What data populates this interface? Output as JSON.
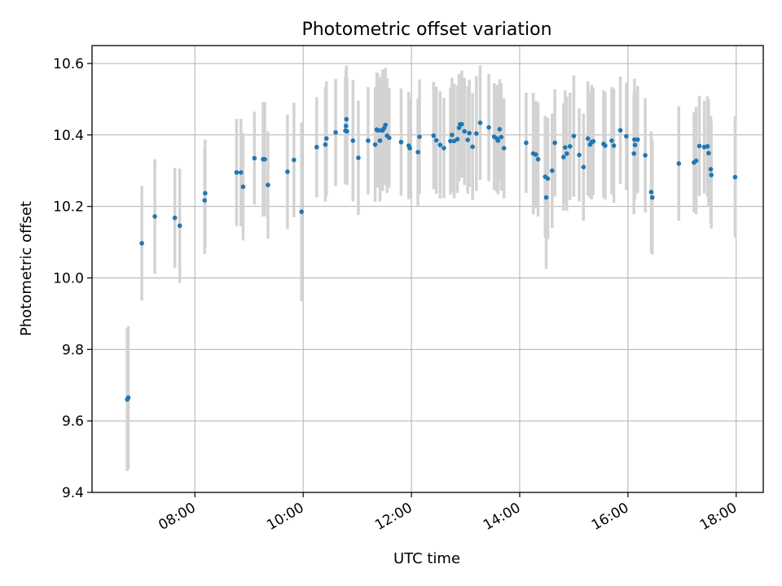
{
  "chart_data": {
    "type": "scatter",
    "title": "Photometric offset variation",
    "xlabel": "UTC time",
    "ylabel": "Photometric offset",
    "xlim": [
      6.1,
      18.5
    ],
    "ylim": [
      9.4,
      10.65
    ],
    "grid": true,
    "colors": {
      "points": "#1f77b4",
      "errorbars": "#d3d3d3",
      "grid": "#b0b0b0",
      "axes": "#000000"
    },
    "x_ticks": [
      8,
      10,
      12,
      14,
      16,
      18
    ],
    "x_tick_labels": [
      "08:00",
      "10:00",
      "12:00",
      "14:00",
      "16:00",
      "18:00"
    ],
    "y_ticks": [
      9.4,
      9.6,
      9.8,
      10.0,
      10.2,
      10.4,
      10.6
    ],
    "y_tick_labels": [
      "9.4",
      "9.6",
      "9.8",
      "10.0",
      "10.2",
      "10.4",
      "10.6"
    ],
    "series": [
      {
        "x": [
          6.75,
          6.77,
          7.02,
          7.26,
          7.63,
          7.72,
          8.18,
          8.19,
          8.77,
          8.85,
          8.89,
          9.1,
          9.26,
          9.29,
          9.35,
          9.71,
          9.83,
          9.97,
          10.25,
          10.41,
          10.43,
          10.6,
          10.78,
          10.79,
          10.8,
          10.81,
          10.92,
          11.02,
          11.2,
          11.33,
          11.36,
          11.38,
          11.42,
          11.44,
          11.47,
          11.5,
          11.52,
          11.55,
          11.59,
          11.81,
          11.95,
          11.97,
          12.12,
          12.15,
          12.41,
          12.46,
          12.53,
          12.6,
          12.72,
          12.75,
          12.79,
          12.85,
          12.88,
          12.9,
          12.93,
          12.98,
          13.04,
          13.07,
          13.13,
          13.2,
          13.27,
          13.43,
          13.53,
          13.58,
          13.6,
          13.63,
          13.66,
          13.71,
          14.12,
          14.25,
          14.3,
          14.34,
          14.47,
          14.49,
          14.52,
          14.6,
          14.65,
          14.81,
          14.84,
          14.87,
          14.93,
          15.0,
          15.1,
          15.18,
          15.26,
          15.3,
          15.33,
          15.36,
          15.55,
          15.58,
          15.7,
          15.74,
          15.86,
          15.97,
          16.11,
          16.12,
          16.13,
          16.18,
          16.32,
          16.43,
          16.45,
          16.94,
          17.22,
          17.26,
          17.32,
          17.41,
          17.47,
          17.49,
          17.53,
          17.54,
          17.98
        ],
        "y": [
          9.66,
          9.665,
          10.097,
          10.172,
          10.168,
          10.146,
          10.217,
          10.237,
          10.295,
          10.295,
          10.255,
          10.335,
          10.332,
          10.332,
          10.26,
          10.297,
          10.33,
          10.185,
          10.366,
          10.373,
          10.39,
          10.407,
          10.412,
          10.425,
          10.444,
          10.41,
          10.384,
          10.336,
          10.384,
          10.373,
          10.415,
          10.413,
          10.384,
          10.413,
          10.413,
          10.42,
          10.428,
          10.398,
          10.392,
          10.38,
          10.37,
          10.363,
          10.352,
          10.395,
          10.398,
          10.385,
          10.372,
          10.363,
          10.383,
          10.4,
          10.383,
          10.388,
          10.42,
          10.43,
          10.43,
          10.41,
          10.386,
          10.405,
          10.367,
          10.404,
          10.434,
          10.421,
          10.395,
          10.39,
          10.384,
          10.416,
          10.394,
          10.363,
          10.378,
          10.348,
          10.345,
          10.332,
          10.283,
          10.225,
          10.278,
          10.3,
          10.378,
          10.338,
          10.365,
          10.348,
          10.368,
          10.397,
          10.344,
          10.31,
          10.39,
          10.373,
          10.38,
          10.382,
          10.375,
          10.37,
          10.384,
          10.37,
          10.413,
          10.396,
          10.348,
          10.387,
          10.372,
          10.387,
          10.343,
          10.24,
          10.225,
          10.32,
          10.323,
          10.328,
          10.369,
          10.366,
          10.368,
          10.349,
          10.304,
          10.288,
          10.282
        ],
        "err": [
          0.2,
          0.2,
          0.16,
          0.16,
          0.14,
          0.16,
          0.15,
          0.15,
          0.15,
          0.15,
          0.15,
          0.13,
          0.16,
          0.16,
          0.15,
          0.16,
          0.16,
          0.25,
          0.14,
          0.16,
          0.16,
          0.15,
          0.15,
          0.16,
          0.15,
          0.15,
          0.17,
          0.16,
          0.15,
          0.16,
          0.16,
          0.16,
          0.17,
          0.15,
          0.17,
          0.16,
          0.16,
          0.16,
          0.14,
          0.15,
          0.15,
          0.14,
          0.15,
          0.16,
          0.15,
          0.15,
          0.15,
          0.14,
          0.15,
          0.16,
          0.16,
          0.15,
          0.15,
          0.14,
          0.15,
          0.15,
          0.15,
          0.15,
          0.15,
          0.16,
          0.16,
          0.15,
          0.15,
          0.15,
          0.15,
          0.14,
          0.15,
          0.14,
          0.14,
          0.17,
          0.15,
          0.16,
          0.17,
          0.2,
          0.17,
          0.16,
          0.15,
          0.15,
          0.16,
          0.16,
          0.15,
          0.17,
          0.13,
          0.15,
          0.16,
          0.15,
          0.16,
          0.15,
          0.15,
          0.15,
          0.15,
          0.16,
          0.15,
          0.15,
          0.17,
          0.17,
          0.15,
          0.15,
          0.16,
          0.17,
          0.16,
          0.16,
          0.14,
          0.15,
          0.14,
          0.13,
          0.14,
          0.15,
          0.15,
          0.15,
          0.17
        ]
      }
    ]
  }
}
